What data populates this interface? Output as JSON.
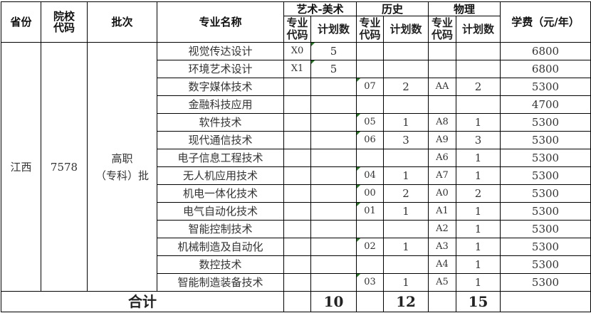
{
  "header": {
    "province": "省份",
    "school_code": "院校\n代码",
    "batch": "批次",
    "major_name": "专业名称",
    "groups": [
      "艺术-美术",
      "历史",
      "物理"
    ],
    "major_code": "专业\n代码",
    "plan_count": "计划数",
    "tuition": "学费（元/年）"
  },
  "province": "江西",
  "school_code": "7578",
  "batch": "高职\n（专科）批",
  "rows": [
    {
      "name": "视觉传达设计",
      "art_code": "X0",
      "art_plan": "5",
      "his_code": "",
      "his_plan": "",
      "phy_code": "",
      "phy_plan": "",
      "fee": "6800"
    },
    {
      "name": "环境艺术设计",
      "art_code": "X1",
      "art_plan": "5",
      "his_code": "",
      "his_plan": "",
      "phy_code": "",
      "phy_plan": "",
      "fee": "6800"
    },
    {
      "name": "数字媒体技术",
      "art_code": "",
      "art_plan": "",
      "his_code": "07",
      "his_plan": "2",
      "phy_code": "AA",
      "phy_plan": "2",
      "fee": "5300"
    },
    {
      "name": "金融科技应用",
      "art_code": "",
      "art_plan": "",
      "his_code": "",
      "his_plan": "",
      "phy_code": "",
      "phy_plan": "",
      "fee": "4700"
    },
    {
      "name": "软件技术",
      "art_code": "",
      "art_plan": "",
      "his_code": "05",
      "his_plan": "1",
      "phy_code": "A8",
      "phy_plan": "1",
      "fee": "5300"
    },
    {
      "name": "现代通信技术",
      "art_code": "",
      "art_plan": "",
      "his_code": "06",
      "his_plan": "3",
      "phy_code": "A9",
      "phy_plan": "3",
      "fee": "5300"
    },
    {
      "name": "电子信息工程技术",
      "art_code": "",
      "art_plan": "",
      "his_code": "",
      "his_plan": "",
      "phy_code": "A6",
      "phy_plan": "1",
      "fee": "5300"
    },
    {
      "name": "无人机应用技术",
      "art_code": "",
      "art_plan": "",
      "his_code": "04",
      "his_plan": "1",
      "phy_code": "A7",
      "phy_plan": "1",
      "fee": "5300"
    },
    {
      "name": "机电一体化技术",
      "art_code": "",
      "art_plan": "",
      "his_code": "00",
      "his_plan": "2",
      "phy_code": "A0",
      "phy_plan": "2",
      "fee": "5300"
    },
    {
      "name": "电气自动化技术",
      "art_code": "",
      "art_plan": "",
      "his_code": "01",
      "his_plan": "1",
      "phy_code": "A1",
      "phy_plan": "1",
      "fee": "5300"
    },
    {
      "name": "智能控制技术",
      "art_code": "",
      "art_plan": "",
      "his_code": "",
      "his_plan": "",
      "phy_code": "A2",
      "phy_plan": "1",
      "fee": "5300"
    },
    {
      "name": "机械制造及自动化",
      "art_code": "",
      "art_plan": "",
      "his_code": "02",
      "his_plan": "1",
      "phy_code": "A3",
      "phy_plan": "1",
      "fee": "5300"
    },
    {
      "name": "数控技术",
      "art_code": "",
      "art_plan": "",
      "his_code": "",
      "his_plan": "",
      "phy_code": "A4",
      "phy_plan": "1",
      "fee": "5300"
    },
    {
      "name": "智能制造装备技术",
      "art_code": "",
      "art_plan": "",
      "his_code": "03",
      "his_plan": "1",
      "phy_code": "A5",
      "phy_plan": "1",
      "fee": "5300"
    }
  ],
  "total": {
    "label": "合计",
    "art": "10",
    "his": "12",
    "phy": "15"
  }
}
